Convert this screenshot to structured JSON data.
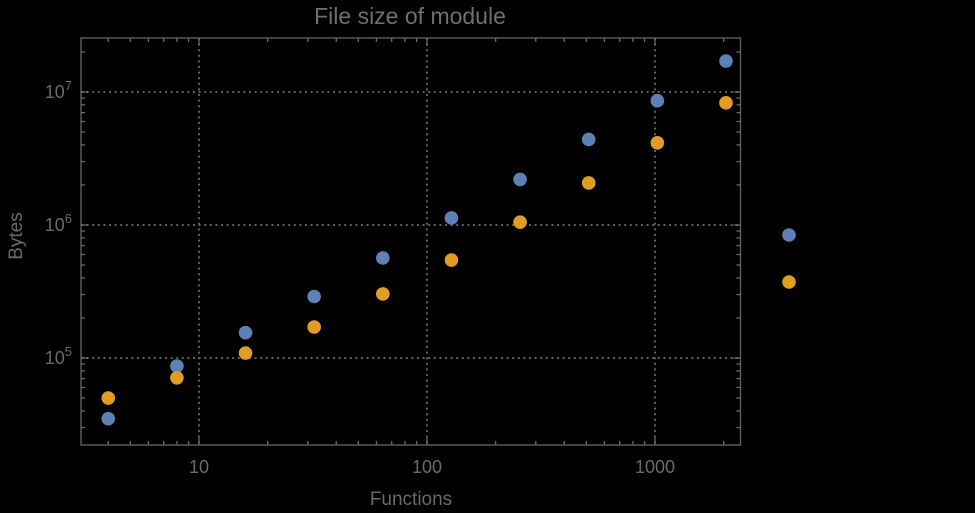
{
  "chart_data": {
    "type": "scatter",
    "title": "File size of module",
    "xlabel": "Functions",
    "ylabel": "Bytes",
    "log_x": true,
    "log_y": true,
    "grid": "dotted",
    "xlim": [
      3,
      2400
    ],
    "ylim": [
      22000,
      25500000
    ],
    "x": [
      4,
      8,
      16,
      32,
      64,
      128,
      256,
      512,
      1024,
      2048
    ],
    "series": [
      {
        "name": "blue-series",
        "color": "#5E81B5",
        "values": [
          35000,
          87000,
          155000,
          290000,
          565000,
          1130000,
          2200000,
          4400000,
          8600000,
          17100000
        ]
      },
      {
        "name": "orange-series",
        "color": "#E19C24",
        "values": [
          50000,
          71000,
          109000,
          171000,
          303000,
          545000,
          1050000,
          2070000,
          4150000,
          8300000
        ]
      }
    ],
    "x_ticks": [
      {
        "value": 10,
        "label": "10"
      },
      {
        "value": 100,
        "label": "100"
      },
      {
        "value": 1000,
        "label": "1000"
      }
    ],
    "y_ticks": [
      {
        "value": 100000,
        "base": "10",
        "exp": "5"
      },
      {
        "value": 1000000,
        "base": "10",
        "exp": "6"
      },
      {
        "value": 10000000,
        "base": "10",
        "exp": "7"
      }
    ],
    "legend": {
      "position": "right-of-frame",
      "labels_visible": false,
      "markers": [
        {
          "series": "blue-series",
          "color": "#5E81B5"
        },
        {
          "series": "orange-series",
          "color": "#E19C24"
        }
      ]
    },
    "colors": {
      "background": "#000000",
      "frame": "#5e5e5e",
      "gridline": "#5f5f5f",
      "tick": "#6a6a6a",
      "text": "#696969",
      "title_text": "#6f6f6f"
    }
  }
}
